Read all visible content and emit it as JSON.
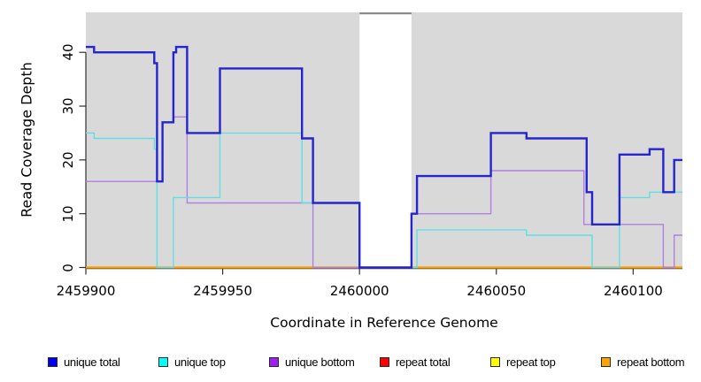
{
  "figure": {
    "background": "#ffffff",
    "plot_background": "#d9d9d9",
    "axis_color": "#303030",
    "gap_band": {
      "fill": "#ffffff",
      "top_border_color": "#8a8a8a"
    }
  },
  "chart_data": {
    "type": "line",
    "subtype": "step-coverage",
    "title": "",
    "xlabel": "Coordinate in Reference Genome",
    "ylabel": "Read Coverage Depth",
    "x_range": [
      2459900,
      2460118
    ],
    "x_ticks": [
      2459900,
      2459950,
      2460000,
      2460050,
      2460100
    ],
    "y_ticks": [
      0,
      10,
      20,
      30,
      40
    ],
    "ylim": [
      0,
      46
    ],
    "grid": false,
    "gap_region": [
      2460000,
      2460019
    ],
    "legend_position": "bottom",
    "series": [
      {
        "name": "unique total",
        "color": "#2424d0",
        "width": 2.4,
        "points": [
          [
            2459900,
            41
          ],
          [
            2459903,
            40
          ],
          [
            2459925,
            38
          ],
          [
            2459926,
            16
          ],
          [
            2459928,
            27
          ],
          [
            2459932,
            40
          ],
          [
            2459933,
            41
          ],
          [
            2459937,
            25
          ],
          [
            2459949,
            37
          ],
          [
            2459979,
            24
          ],
          [
            2459983,
            12
          ],
          [
            2460000,
            0
          ],
          [
            2460019,
            10
          ],
          [
            2460021,
            17
          ],
          [
            2460048,
            25
          ],
          [
            2460061,
            24
          ],
          [
            2460083,
            14
          ],
          [
            2460085,
            8
          ],
          [
            2460095,
            21
          ],
          [
            2460106,
            22
          ],
          [
            2460111,
            14
          ],
          [
            2460115,
            20
          ]
        ]
      },
      {
        "name": "unique top",
        "color": "#5fdfe4",
        "width": 1.4,
        "points": [
          [
            2459900,
            25
          ],
          [
            2459903,
            24
          ],
          [
            2459925,
            22
          ],
          [
            2459926,
            0
          ],
          [
            2459932,
            13
          ],
          [
            2459949,
            25
          ],
          [
            2459979,
            12
          ],
          [
            2460000,
            0
          ],
          [
            2460021,
            7
          ],
          [
            2460061,
            6
          ],
          [
            2460085,
            0
          ],
          [
            2460095,
            13
          ],
          [
            2460106,
            14
          ]
        ]
      },
      {
        "name": "unique bottom",
        "color": "#b27fe2",
        "width": 1.4,
        "points": [
          [
            2459900,
            16
          ],
          [
            2459928,
            27
          ],
          [
            2459932,
            28
          ],
          [
            2459937,
            12
          ],
          [
            2459983,
            0
          ],
          [
            2460019,
            10
          ],
          [
            2460048,
            18
          ],
          [
            2460082,
            8
          ],
          [
            2460111,
            0
          ],
          [
            2460115,
            6
          ]
        ]
      },
      {
        "name": "repeat total",
        "color": "#ff0000",
        "width": 1.4,
        "points": [
          [
            2459900,
            0
          ]
        ]
      },
      {
        "name": "repeat top",
        "color": "#ffff00",
        "width": 1.4,
        "points": [
          [
            2459900,
            0
          ]
        ]
      },
      {
        "name": "repeat bottom",
        "color": "#ff9d00",
        "width": 2.2,
        "points": [
          [
            2459900,
            0
          ]
        ]
      }
    ]
  },
  "legend": {
    "items": [
      {
        "label": "unique total",
        "color": "#0000ee"
      },
      {
        "label": "unique top",
        "color": "#00ffff"
      },
      {
        "label": "unique bottom",
        "color": "#a020f0"
      },
      {
        "label": "repeat total",
        "color": "#ff0000"
      },
      {
        "label": "repeat top",
        "color": "#ffff00"
      },
      {
        "label": "repeat bottom",
        "color": "#ffa500"
      }
    ]
  }
}
